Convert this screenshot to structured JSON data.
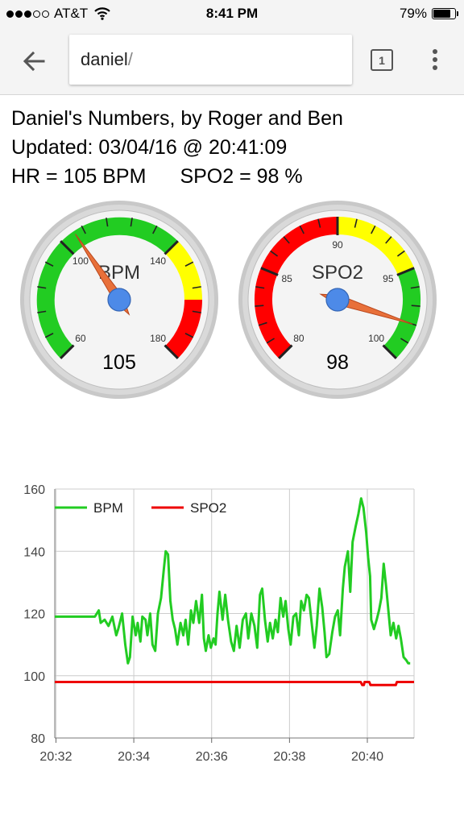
{
  "status_bar": {
    "carrier": "AT&T",
    "time": "8:41 PM",
    "battery": "79%",
    "battery_level": 0.79,
    "signal_bars": 3,
    "icons": [
      "signal-dots-icon",
      "wifi-icon",
      "battery-icon"
    ]
  },
  "browser": {
    "url_host": "daniel",
    "url_path": "/",
    "tab_count": "1",
    "icons": [
      "back-arrow-icon",
      "tab-switcher-icon",
      "overflow-menu-icon"
    ]
  },
  "page": {
    "title": "Daniel's Numbers, by Roger and Ben",
    "updated": "Updated: 03/04/16 @ 20:41:09",
    "hr_text": "HR = 105 BPM",
    "spo2_text": "SPO2 = 98 %"
  },
  "gauges": [
    {
      "id": "bpm",
      "label": "BPM",
      "value": 105,
      "value_text": "105",
      "min": 60,
      "max": 180,
      "major_ticks": [
        "60",
        "100",
        "140",
        "180"
      ],
      "bands": [
        {
          "from": 60,
          "to": 140,
          "color": "#22cc22"
        },
        {
          "from": 140,
          "to": 160,
          "color": "#ffff00"
        },
        {
          "from": 160,
          "to": 180,
          "color": "#ff0000"
        }
      ]
    },
    {
      "id": "spo2",
      "label": "SPO2",
      "value": 98,
      "value_text": "98",
      "min": 80,
      "max": 100,
      "major_ticks": [
        "80",
        "85",
        "90",
        "95",
        "100"
      ],
      "bands": [
        {
          "from": 80,
          "to": 90,
          "color": "#ff0000"
        },
        {
          "from": 90,
          "to": 95,
          "color": "#ffff00"
        },
        {
          "from": 95,
          "to": 100,
          "color": "#22cc22"
        }
      ]
    }
  ],
  "chart_data": {
    "type": "line",
    "title": "",
    "xlabel": "",
    "ylabel": "",
    "x_ticks": [
      "20:32",
      "20:34",
      "20:36",
      "20:38",
      "20:40"
    ],
    "x_tick_values": [
      32,
      34,
      36,
      38,
      40
    ],
    "xlim": [
      31.97,
      41.2
    ],
    "ylim": [
      80,
      160
    ],
    "y_ticks": [
      80,
      100,
      120,
      140,
      160
    ],
    "grid": true,
    "legend": "top-left",
    "series": [
      {
        "name": "BPM",
        "color": "#22cc22",
        "points": [
          [
            31.97,
            119
          ],
          [
            33.0,
            119
          ],
          [
            33.1,
            121
          ],
          [
            33.15,
            117
          ],
          [
            33.25,
            118
          ],
          [
            33.35,
            116
          ],
          [
            33.45,
            119
          ],
          [
            33.55,
            113
          ],
          [
            33.6,
            115
          ],
          [
            33.7,
            120
          ],
          [
            33.78,
            110
          ],
          [
            33.85,
            104
          ],
          [
            33.9,
            106
          ],
          [
            33.97,
            119
          ],
          [
            34.05,
            113
          ],
          [
            34.1,
            117
          ],
          [
            34.17,
            111
          ],
          [
            34.22,
            119
          ],
          [
            34.3,
            118
          ],
          [
            34.35,
            113
          ],
          [
            34.42,
            120
          ],
          [
            34.48,
            110
          ],
          [
            34.55,
            108
          ],
          [
            34.62,
            120
          ],
          [
            34.7,
            125
          ],
          [
            34.77,
            134
          ],
          [
            34.82,
            140
          ],
          [
            34.88,
            139
          ],
          [
            34.94,
            124
          ],
          [
            35.0,
            118
          ],
          [
            35.06,
            115
          ],
          [
            35.12,
            110
          ],
          [
            35.2,
            117
          ],
          [
            35.27,
            113
          ],
          [
            35.33,
            118
          ],
          [
            35.4,
            110
          ],
          [
            35.47,
            121
          ],
          [
            35.53,
            117
          ],
          [
            35.6,
            124
          ],
          [
            35.68,
            117
          ],
          [
            35.75,
            126
          ],
          [
            35.8,
            112
          ],
          [
            35.85,
            108
          ],
          [
            35.92,
            113
          ],
          [
            35.98,
            109
          ],
          [
            36.05,
            112
          ],
          [
            36.1,
            110
          ],
          [
            36.15,
            120
          ],
          [
            36.2,
            127
          ],
          [
            36.28,
            118
          ],
          [
            36.35,
            126
          ],
          [
            36.42,
            118
          ],
          [
            36.5,
            111
          ],
          [
            36.57,
            108
          ],
          [
            36.64,
            116
          ],
          [
            36.72,
            109
          ],
          [
            36.8,
            118
          ],
          [
            36.88,
            120
          ],
          [
            36.94,
            112
          ],
          [
            37.02,
            120
          ],
          [
            37.1,
            116
          ],
          [
            37.17,
            109
          ],
          [
            37.24,
            126
          ],
          [
            37.3,
            128
          ],
          [
            37.37,
            118
          ],
          [
            37.44,
            111
          ],
          [
            37.5,
            117
          ],
          [
            37.57,
            112
          ],
          [
            37.64,
            118
          ],
          [
            37.7,
            114
          ],
          [
            37.77,
            125
          ],
          [
            37.84,
            119
          ],
          [
            37.9,
            124
          ],
          [
            37.97,
            115
          ],
          [
            38.03,
            110
          ],
          [
            38.1,
            119
          ],
          [
            38.17,
            120
          ],
          [
            38.24,
            113
          ],
          [
            38.3,
            124
          ],
          [
            38.37,
            121
          ],
          [
            38.44,
            126
          ],
          [
            38.5,
            125
          ],
          [
            38.57,
            117
          ],
          [
            38.64,
            109
          ],
          [
            38.7,
            116
          ],
          [
            38.77,
            128
          ],
          [
            38.84,
            122
          ],
          [
            38.9,
            114
          ],
          [
            38.95,
            106
          ],
          [
            39.02,
            107
          ],
          [
            39.1,
            114
          ],
          [
            39.17,
            119
          ],
          [
            39.24,
            121
          ],
          [
            39.3,
            113
          ],
          [
            39.37,
            128
          ],
          [
            39.42,
            135
          ],
          [
            39.5,
            140
          ],
          [
            39.56,
            127
          ],
          [
            39.62,
            143
          ],
          [
            39.7,
            148
          ],
          [
            39.77,
            152
          ],
          [
            39.84,
            157
          ],
          [
            39.9,
            154
          ],
          [
            39.97,
            146
          ],
          [
            40.02,
            138
          ],
          [
            40.07,
            132
          ],
          [
            40.1,
            118
          ],
          [
            40.17,
            115
          ],
          [
            40.24,
            118
          ],
          [
            40.3,
            121
          ],
          [
            40.36,
            125
          ],
          [
            40.42,
            136
          ],
          [
            40.48,
            129
          ],
          [
            40.54,
            121
          ],
          [
            40.6,
            113
          ],
          [
            40.67,
            117
          ],
          [
            40.74,
            112
          ],
          [
            40.8,
            116
          ],
          [
            40.86,
            112
          ],
          [
            40.93,
            106
          ],
          [
            41.0,
            105
          ],
          [
            41.05,
            104
          ],
          [
            41.1,
            104
          ]
        ]
      },
      {
        "name": "SPO2",
        "color": "#ee0000",
        "points": [
          [
            31.97,
            98
          ],
          [
            39.83,
            98
          ],
          [
            39.87,
            97
          ],
          [
            39.91,
            97
          ],
          [
            39.93,
            98
          ],
          [
            40.05,
            98
          ],
          [
            40.08,
            97
          ],
          [
            40.73,
            97
          ],
          [
            40.76,
            98
          ],
          [
            41.2,
            98
          ]
        ]
      }
    ]
  }
}
